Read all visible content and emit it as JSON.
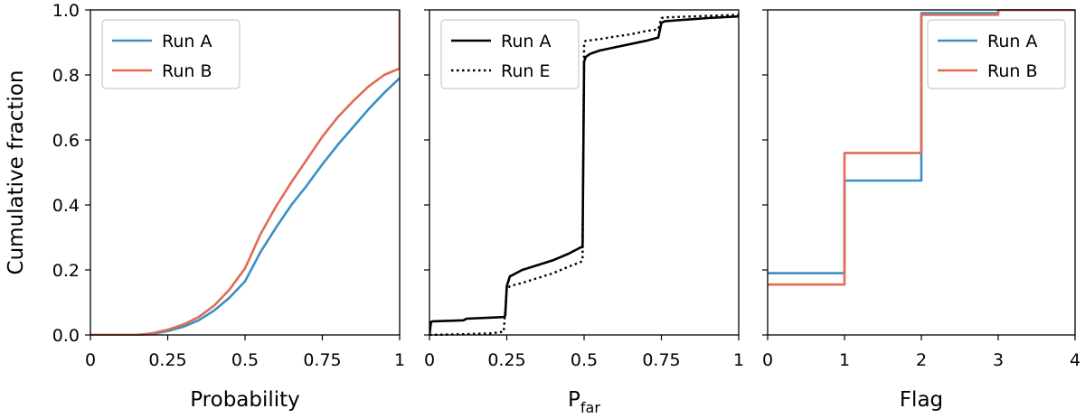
{
  "chart_data": [
    {
      "type": "line",
      "panel": "left",
      "xlabel": "Probability",
      "ylabel": "Cumulative fraction",
      "xlim": [
        0,
        1
      ],
      "ylim": [
        0,
        1
      ],
      "x_ticks": [
        0,
        0.25,
        0.5,
        0.75,
        1
      ],
      "x_tick_labels": [
        "0",
        "0.25",
        "0.5",
        "0.75",
        "1"
      ],
      "y_ticks": [
        0,
        0.2,
        0.4,
        0.6,
        0.8,
        1.0
      ],
      "y_tick_labels": [
        "0.0",
        "0.2",
        "0.4",
        "0.6",
        "0.8",
        "1.0"
      ],
      "grid": false,
      "legend_position": "top-left",
      "series": [
        {
          "name": "Run A",
          "color": "#3b8fc6",
          "style": "solid",
          "x": [
            0,
            0.15,
            0.2,
            0.25,
            0.3,
            0.35,
            0.4,
            0.45,
            0.5,
            0.55,
            0.6,
            0.65,
            0.7,
            0.75,
            0.8,
            0.85,
            0.9,
            0.95,
            1.0
          ],
          "y": [
            0,
            0,
            0.003,
            0.012,
            0.025,
            0.045,
            0.075,
            0.115,
            0.165,
            0.255,
            0.33,
            0.4,
            0.46,
            0.525,
            0.585,
            0.64,
            0.695,
            0.745,
            0.79
          ]
        },
        {
          "name": "Run B",
          "color": "#e06c54",
          "style": "solid",
          "x": [
            0,
            0.15,
            0.2,
            0.25,
            0.3,
            0.35,
            0.4,
            0.45,
            0.5,
            0.55,
            0.6,
            0.65,
            0.7,
            0.75,
            0.8,
            0.85,
            0.9,
            0.95,
            1.0,
            1.0
          ],
          "y": [
            0,
            0,
            0.005,
            0.016,
            0.032,
            0.055,
            0.09,
            0.14,
            0.205,
            0.31,
            0.395,
            0.47,
            0.54,
            0.61,
            0.67,
            0.72,
            0.765,
            0.8,
            0.82,
            1.0
          ]
        }
      ]
    },
    {
      "type": "line",
      "panel": "middle",
      "xlabel": "P",
      "xlabel_subscript": "far",
      "xlim": [
        0,
        1
      ],
      "ylim": [
        0,
        1
      ],
      "x_ticks": [
        0,
        0.25,
        0.5,
        0.75,
        1
      ],
      "x_tick_labels": [
        "0",
        "0.25",
        "0.5",
        "0.75",
        "1"
      ],
      "y_ticks": [
        0,
        0.2,
        0.4,
        0.6,
        0.8,
        1.0
      ],
      "grid": false,
      "legend_position": "top-left",
      "series": [
        {
          "name": "Run A",
          "color": "#000000",
          "style": "solid",
          "x": [
            0,
            0.005,
            0.01,
            0.11,
            0.12,
            0.24,
            0.245,
            0.25,
            0.26,
            0.3,
            0.35,
            0.4,
            0.45,
            0.48,
            0.49,
            0.495,
            0.5,
            0.505,
            0.52,
            0.55,
            0.6,
            0.65,
            0.7,
            0.74,
            0.75,
            0.76,
            0.8,
            0.9,
            1.0
          ],
          "y": [
            0,
            0.04,
            0.042,
            0.045,
            0.05,
            0.055,
            0.06,
            0.15,
            0.18,
            0.2,
            0.215,
            0.23,
            0.25,
            0.265,
            0.27,
            0.27,
            0.84,
            0.855,
            0.865,
            0.875,
            0.885,
            0.895,
            0.905,
            0.915,
            0.96,
            0.965,
            0.968,
            0.975,
            0.98
          ]
        },
        {
          "name": "Run E",
          "color": "#000000",
          "style": "dotted",
          "x": [
            0,
            0.1,
            0.2,
            0.24,
            0.25,
            0.26,
            0.3,
            0.35,
            0.4,
            0.45,
            0.49,
            0.495,
            0.5,
            0.505,
            0.55,
            0.6,
            0.65,
            0.7,
            0.74,
            0.75,
            0.76,
            0.85,
            1.0
          ],
          "y": [
            0,
            0.002,
            0.005,
            0.01,
            0.14,
            0.15,
            0.16,
            0.175,
            0.19,
            0.21,
            0.225,
            0.23,
            0.9,
            0.905,
            0.91,
            0.918,
            0.925,
            0.935,
            0.94,
            0.975,
            0.977,
            0.98,
            0.985
          ]
        }
      ]
    },
    {
      "type": "line",
      "panel": "right",
      "xlabel": "Flag",
      "xlim": [
        0,
        4
      ],
      "ylim": [
        0,
        1
      ],
      "x_ticks": [
        0,
        1,
        2,
        3,
        4
      ],
      "x_tick_labels": [
        "0",
        "1",
        "2",
        "3",
        "4"
      ],
      "y_ticks": [
        0,
        0.2,
        0.4,
        0.6,
        0.8,
        1.0
      ],
      "grid": false,
      "legend_position": "top-right",
      "series": [
        {
          "name": "Run A",
          "color": "#3b8fc6",
          "style": "step",
          "x": [
            0,
            1,
            1,
            2,
            2,
            3,
            3,
            4
          ],
          "y": [
            0.19,
            0.19,
            0.475,
            0.475,
            0.99,
            0.99,
            1.0,
            1.0
          ]
        },
        {
          "name": "Run B",
          "color": "#e06c54",
          "style": "step",
          "x": [
            0,
            1,
            1,
            2,
            2,
            3,
            3,
            4
          ],
          "y": [
            0.155,
            0.155,
            0.56,
            0.56,
            0.985,
            0.985,
            1.0,
            1.0
          ]
        }
      ]
    }
  ]
}
